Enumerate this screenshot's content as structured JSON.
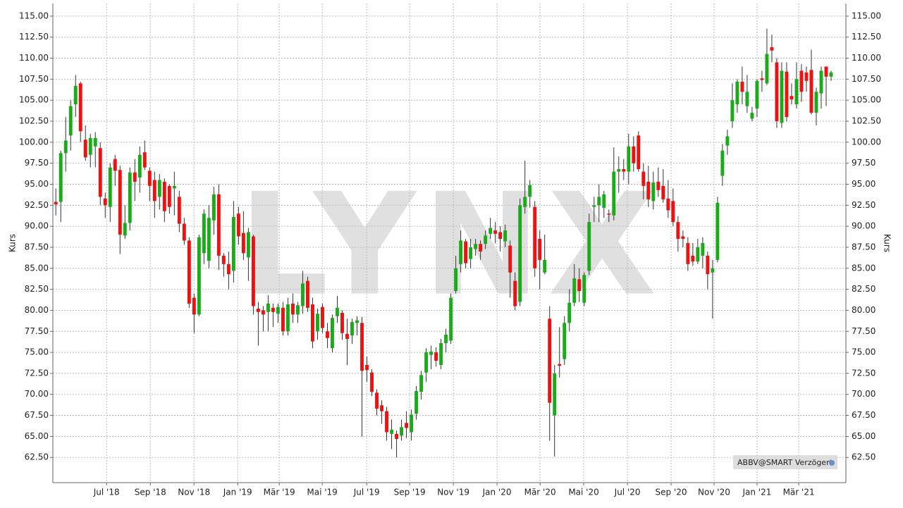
{
  "chart_data": {
    "type": "candlestick",
    "watermark": "LYNX",
    "ylabel": "Kurs",
    "annotation": "ABBV@SMART Verzögert",
    "up_color": "#1aaa1a",
    "down_color": "#ee1111",
    "grid": true,
    "xlim": [
      -0.6,
      160
    ],
    "ylim": [
      59.5,
      116.5
    ],
    "xticks": [
      {
        "value": 10.28,
        "label": "Jul '18"
      },
      {
        "value": 19.13,
        "label": "Sep '18"
      },
      {
        "value": 27.98,
        "label": "Nov '18"
      },
      {
        "value": 36.83,
        "label": "Jan '19"
      },
      {
        "value": 45.25,
        "label": "Mär '19"
      },
      {
        "value": 53.95,
        "label": "Mai '19"
      },
      {
        "value": 62.95,
        "label": "Jul '19"
      },
      {
        "value": 71.65,
        "label": "Sep '19"
      },
      {
        "value": 80.5,
        "label": "Nov '19"
      },
      {
        "value": 89.35,
        "label": "Jan '20"
      },
      {
        "value": 98.06,
        "label": "Mär '20"
      },
      {
        "value": 106.9,
        "label": "Mai '20"
      },
      {
        "value": 115.76,
        "label": "Jul '20"
      },
      {
        "value": 124.6,
        "label": "Sep '20"
      },
      {
        "value": 133.3,
        "label": "Nov '20"
      },
      {
        "value": 142.0,
        "label": "Jan '21"
      },
      {
        "value": 150.45,
        "label": "Mär '21"
      }
    ],
    "yticks": [
      {
        "value": 62.5,
        "label": "62.50"
      },
      {
        "value": 65,
        "label": "65.00"
      },
      {
        "value": 67.5,
        "label": "67.50"
      },
      {
        "value": 70,
        "label": "70.00"
      },
      {
        "value": 72.5,
        "label": "72.50"
      },
      {
        "value": 75,
        "label": "75.00"
      },
      {
        "value": 77.5,
        "label": "77.50"
      },
      {
        "value": 80,
        "label": "80.00"
      },
      {
        "value": 82.5,
        "label": "82.50"
      },
      {
        "value": 85,
        "label": "85.00"
      },
      {
        "value": 87.5,
        "label": "87.50"
      },
      {
        "value": 90,
        "label": "90.00"
      },
      {
        "value": 92.5,
        "label": "92.50"
      },
      {
        "value": 95,
        "label": "95.00"
      },
      {
        "value": 97.5,
        "label": "97.50"
      },
      {
        "value": 100,
        "label": "100.00"
      },
      {
        "value": 102.5,
        "label": "102.50"
      },
      {
        "value": 105,
        "label": "105.00"
      },
      {
        "value": 107.5,
        "label": "107.50"
      },
      {
        "value": 110,
        "label": "110.00"
      },
      {
        "value": 112.5,
        "label": "112.50"
      },
      {
        "value": 115,
        "label": "115.00"
      }
    ],
    "open": [
      92.9,
      92.9,
      98.7,
      100.8,
      104.5,
      107,
      100.3,
      98.5,
      99.5,
      99.3,
      93.3,
      92.3,
      98,
      96.7,
      88.9,
      90.4,
      96.4,
      95.8,
      98.8,
      96.6,
      95.5,
      93.5,
      95.3,
      94.8,
      94.5,
      93.5,
      90.3,
      88.3,
      81.5,
      79.5,
      86.8,
      85.9,
      90.7,
      93.8,
      86.5,
      85.5,
      84.7,
      91.5,
      89.2,
      86.3,
      88.8,
      80.2,
      80,
      79.8,
      80.3,
      79.6,
      80.3,
      77.5,
      80.8,
      79.5,
      80.5,
      83.5,
      80.7,
      77.5,
      80.4,
      77.5,
      75.5,
      79.3,
      79.7,
      77.2,
      77,
      78.5,
      78.5,
      73.5,
      72.6,
      70.2,
      68.7,
      68,
      65.3,
      65.3,
      65.1,
      66.6,
      65.5,
      67.7,
      70.3,
      72.6,
      74.7,
      75,
      73.5,
      76.1,
      76.4,
      82.3,
      85.5,
      88.2,
      86.1,
      87.3,
      87.9,
      87.9,
      89.1,
      89.5,
      89.3,
      88.2,
      87.7,
      83.5,
      81,
      92.3,
      93.5,
      92.3,
      88.5,
      84.5,
      79,
      67.5,
      73.6,
      74.2,
      78.5,
      80.9,
      83.7,
      80.9,
      84.7,
      92.3,
      92.5,
      92.2,
      91.5,
      91.3,
      96.5,
      96.8,
      96.5,
      99.5,
      100.8,
      96.5,
      95.3,
      93,
      95.3,
      94.8,
      93.3,
      93,
      90.5,
      88.8,
      88,
      86.5,
      85.8,
      86.5,
      86.5,
      84.5,
      86,
      96,
      99.6,
      102.5,
      104.5,
      107.2,
      104.3,
      102.8,
      104,
      107.6,
      107,
      111.3,
      109.5,
      102.3,
      108.4,
      105.5,
      104.5,
      108.5,
      108.3,
      108.6,
      103.5,
      105.8,
      109,
      107.8
    ],
    "high": [
      94.5,
      99,
      103,
      105,
      108,
      107.2,
      102,
      101,
      101.2,
      100,
      94,
      97.5,
      98.5,
      97.2,
      92.5,
      97,
      98,
      99.5,
      100.2,
      97,
      96.5,
      96.2,
      95.7,
      95,
      96.5,
      94.2,
      91,
      88.7,
      82,
      89,
      92,
      92.5,
      94.7,
      95,
      86.8,
      87,
      93,
      92.3,
      91.8,
      89.8,
      89,
      81,
      80.5,
      81.8,
      80.8,
      80.8,
      81,
      81.5,
      82,
      81,
      84.7,
      84,
      81.5,
      80.2,
      80.8,
      78.5,
      79.5,
      81.7,
      80,
      79,
      79,
      79.3,
      79.2,
      74.5,
      73,
      70.6,
      69.3,
      68.5,
      67,
      65.7,
      67,
      68,
      68.2,
      71,
      72.8,
      75.5,
      75.8,
      75.6,
      76.6,
      77.8,
      82,
      86.5,
      89.5,
      88.5,
      88.5,
      88.5,
      88.3,
      89.5,
      91,
      90.5,
      90,
      90.2,
      88.3,
      84.5,
      93.3,
      97.8,
      95.5,
      93,
      89.5,
      89,
      80.5,
      73.5,
      78,
      79.3,
      82.5,
      85.5,
      85,
      84.5,
      91.5,
      93.5,
      95,
      94.2,
      92,
      99.4,
      98.3,
      98,
      101,
      100.7,
      101.3,
      97.5,
      97.2,
      96.5,
      97,
      96.8,
      95.5,
      94.5,
      91.2,
      89.5,
      88.7,
      88,
      88.5,
      88.7,
      87,
      86,
      93.5,
      99.8,
      101.5,
      107,
      107.5,
      109,
      108,
      104.2,
      107.5,
      108.5,
      113.5,
      112.8,
      110,
      109.5,
      109.5,
      107,
      109.5,
      109.3,
      109,
      111,
      106.5,
      109,
      109,
      108.5
    ],
    "low": [
      91.3,
      90.5,
      96.5,
      99,
      103,
      100,
      97.8,
      97,
      97,
      92.5,
      91,
      90.5,
      94.8,
      86.7,
      88.5,
      89.5,
      93,
      94,
      96.7,
      93,
      91,
      92,
      90.5,
      91.5,
      91.3,
      89.3,
      87.8,
      80.3,
      77.3,
      79.3,
      85.5,
      85,
      89,
      84.8,
      84,
      82.5,
      83.3,
      87.8,
      86,
      83.5,
      79.5,
      75.8,
      77.5,
      77.5,
      78,
      78.5,
      77,
      77,
      78.5,
      78.5,
      79.6,
      79.8,
      75.5,
      76.5,
      77.3,
      75.5,
      75,
      78.5,
      76.5,
      73.5,
      76,
      77,
      65,
      71.5,
      69.8,
      67.5,
      66.5,
      64.5,
      63.5,
      62.5,
      64.5,
      64.8,
      64.5,
      67,
      69.4,
      71.5,
      73,
      73.3,
      73,
      75,
      76,
      82,
      84.5,
      85,
      85,
      86.5,
      86,
      87.3,
      88.5,
      88,
      87,
      87.5,
      81.5,
      80,
      80.5,
      91.5,
      92.2,
      84,
      82.5,
      84.3,
      64.5,
      62.6,
      72,
      73.5,
      77.5,
      80.5,
      81,
      80.5,
      84.2,
      90.5,
      90.5,
      91,
      90.5,
      90.7,
      94,
      95.5,
      95,
      96.5,
      96.5,
      93.2,
      92.3,
      92,
      93.5,
      92.8,
      91,
      90,
      87,
      87.5,
      84.7,
      85.3,
      85.5,
      85,
      82.5,
      79,
      85.7,
      94.8,
      98.5,
      101.7,
      103.5,
      104.5,
      103.5,
      102.5,
      103,
      106,
      106.8,
      109.5,
      101.7,
      101.7,
      102.5,
      104.5,
      104,
      104.8,
      106,
      103.3,
      102,
      104,
      104.3,
      107.3
    ],
    "close": [
      92.6,
      98.7,
      100.2,
      104.3,
      106.7,
      101.3,
      98.2,
      100.5,
      100.5,
      93.5,
      92.5,
      97,
      96.6,
      89,
      90.4,
      96.4,
      95.3,
      98.5,
      97,
      94.8,
      93,
      95.5,
      91.8,
      92.3,
      94.8,
      90.3,
      88.3,
      80.8,
      79.5,
      88.7,
      91.5,
      91,
      93.8,
      86.5,
      85.5,
      84.3,
      91.1,
      88.8,
      86.8,
      89.3,
      80.5,
      79.8,
      79.5,
      80.8,
      79.8,
      80.4,
      77.5,
      80.7,
      79.5,
      80.6,
      83.2,
      80.3,
      76.3,
      79.6,
      77.9,
      76.7,
      79.1,
      80.3,
      77.3,
      76.6,
      78.6,
      78.8,
      72.8,
      72.9,
      70.3,
      68.3,
      68,
      65.5,
      65.8,
      64.7,
      66.1,
      66,
      67.6,
      70.4,
      72.3,
      75,
      75.1,
      74,
      76.1,
      77.1,
      81.5,
      85,
      88.3,
      85.6,
      87.5,
      87.9,
      87,
      88.9,
      89.8,
      89.1,
      88.5,
      89.5,
      84.5,
      80.5,
      92.5,
      93.5,
      94.9,
      85,
      86,
      86,
      69,
      72.5,
      73.4,
      78.5,
      80.9,
      83.8,
      82.3,
      84.2,
      90.5,
      92.5,
      93.5,
      93.8,
      91.4,
      96.5,
      96.8,
      96.5,
      99.5,
      97.5,
      96.8,
      94.8,
      93.2,
      95.2,
      94.3,
      93.2,
      91.9,
      90.5,
      88.5,
      88.5,
      85.5,
      85.8,
      87.5,
      88,
      84.3,
      85,
      92.8,
      99,
      100.7,
      105,
      107.2,
      106,
      106,
      103.5,
      107.3,
      107.4,
      110.5,
      110.9,
      102.5,
      108.5,
      103,
      105.1,
      107.5,
      106,
      107.3,
      103.5,
      106,
      108.5,
      107.8,
      108.3
    ]
  }
}
